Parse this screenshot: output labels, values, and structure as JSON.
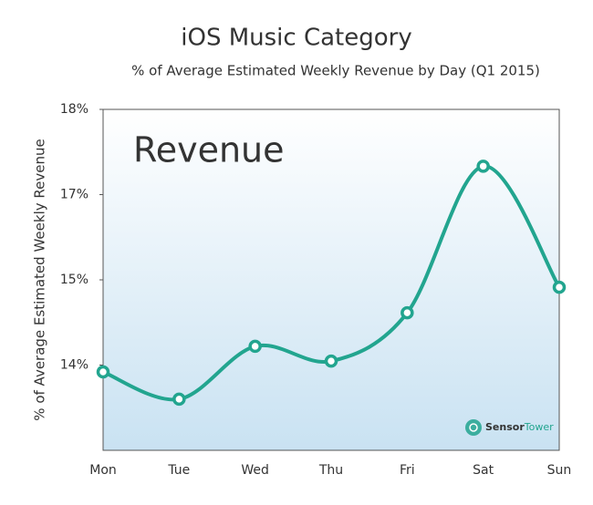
{
  "chart_data": {
    "type": "line",
    "title": "iOS Music Category",
    "subtitle": "% of Average Estimated Weekly Revenue by Day (Q1 2015)",
    "y_label": "% of Average Estimated Weekly Revenue",
    "watermark": "Revenue",
    "brand": [
      "Sensor",
      "Tower"
    ],
    "categories": [
      "Mon",
      "Tue",
      "Wed",
      "Thu",
      "Fri",
      "Sat",
      "Sun"
    ],
    "series": [
      {
        "name": "Revenue",
        "color": "#22a58f",
        "values": [
          13.38,
          12.9,
          13.83,
          13.57,
          14.42,
          17.0,
          14.87
        ]
      }
    ],
    "ylim": [
      12,
      18
    ],
    "yticks": [
      {
        "value": 13.5,
        "label": "14%"
      },
      {
        "value": 15,
        "label": "15%"
      },
      {
        "value": 16.5,
        "label": "17%"
      },
      {
        "value": 18,
        "label": "18%"
      }
    ]
  }
}
